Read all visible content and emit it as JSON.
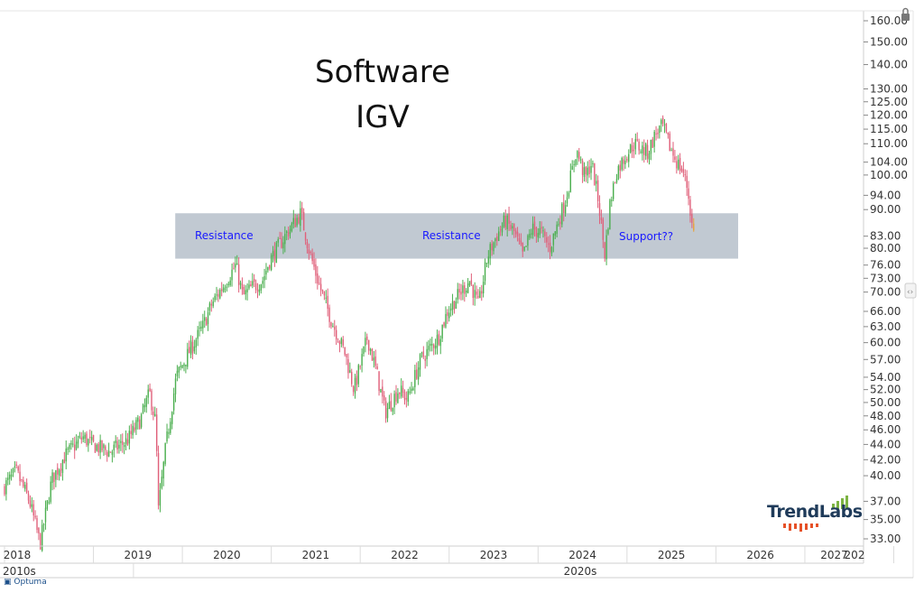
{
  "chart_data": {
    "type": "candlestick",
    "title": "Software",
    "subtitle": "IGV",
    "y_scale": "log",
    "ylim": [
      32,
      165
    ],
    "y_ticks": [
      "160.00",
      "150.00",
      "140.00",
      "130.00",
      "125.00",
      "120.00",
      "115.00",
      "110.00",
      "104.00",
      "100.00",
      "94.00",
      "90.00",
      "83.00",
      "80.00",
      "76.00",
      "73.00",
      "70.00",
      "66.00",
      "63.00",
      "60.00",
      "57.00",
      "54.00",
      "52.00",
      "50.00",
      "48.00",
      "46.00",
      "44.00",
      "42.00",
      "40.00",
      "37.00",
      "35.00",
      "33.00"
    ],
    "x_ticks": [
      "2018",
      "2019",
      "2020",
      "2021",
      "2022",
      "2023",
      "2024",
      "2025",
      "2026",
      "2027",
      "202"
    ],
    "x_eras": [
      "2010s",
      "2020s"
    ],
    "xlim": [
      2018.0,
      2028.0
    ],
    "price_path": [
      {
        "date": 2018.0,
        "price": 38.5
      },
      {
        "date": 2018.15,
        "price": 40.5
      },
      {
        "date": 2018.3,
        "price": 37.0
      },
      {
        "date": 2018.42,
        "price": 32.5
      },
      {
        "date": 2018.55,
        "price": 39.5
      },
      {
        "date": 2018.7,
        "price": 42.5
      },
      {
        "date": 2018.9,
        "price": 45.0
      },
      {
        "date": 2019.0,
        "price": 44.0
      },
      {
        "date": 2019.2,
        "price": 43.0
      },
      {
        "date": 2019.4,
        "price": 44.5
      },
      {
        "date": 2019.55,
        "price": 47.5
      },
      {
        "date": 2019.65,
        "price": 51.5
      },
      {
        "date": 2019.72,
        "price": 47.0
      },
      {
        "date": 2019.75,
        "price": 36.0
      },
      {
        "date": 2019.83,
        "price": 43.5
      },
      {
        "date": 2019.95,
        "price": 54.0
      },
      {
        "date": 2020.1,
        "price": 58.5
      },
      {
        "date": 2020.25,
        "price": 63.0
      },
      {
        "date": 2020.35,
        "price": 67.5
      },
      {
        "date": 2020.5,
        "price": 72.0
      },
      {
        "date": 2020.62,
        "price": 76.0
      },
      {
        "date": 2020.7,
        "price": 69.0
      },
      {
        "date": 2020.8,
        "price": 71.0
      },
      {
        "date": 2020.92,
        "price": 72.5
      },
      {
        "date": 2021.0,
        "price": 77.0
      },
      {
        "date": 2021.2,
        "price": 84.0
      },
      {
        "date": 2021.35,
        "price": 89.0
      },
      {
        "date": 2021.45,
        "price": 79.0
      },
      {
        "date": 2021.55,
        "price": 72.0
      },
      {
        "date": 2021.7,
        "price": 64.0
      },
      {
        "date": 2021.85,
        "price": 58.0
      },
      {
        "date": 2021.95,
        "price": 52.0
      },
      {
        "date": 2022.1,
        "price": 61.0
      },
      {
        "date": 2022.2,
        "price": 55.0
      },
      {
        "date": 2022.3,
        "price": 48.5
      },
      {
        "date": 2022.45,
        "price": 52.0
      },
      {
        "date": 2022.55,
        "price": 50.5
      },
      {
        "date": 2022.7,
        "price": 57.0
      },
      {
        "date": 2022.9,
        "price": 61.0
      },
      {
        "date": 2023.0,
        "price": 66.0
      },
      {
        "date": 2023.15,
        "price": 70.0
      },
      {
        "date": 2023.25,
        "price": 72.5
      },
      {
        "date": 2023.35,
        "price": 67.0
      },
      {
        "date": 2023.45,
        "price": 78.0
      },
      {
        "date": 2023.55,
        "price": 83.0
      },
      {
        "date": 2023.65,
        "price": 87.0
      },
      {
        "date": 2023.75,
        "price": 84.0
      },
      {
        "date": 2023.85,
        "price": 78.0
      },
      {
        "date": 2023.95,
        "price": 85.0
      },
      {
        "date": 2024.05,
        "price": 84.0
      },
      {
        "date": 2024.15,
        "price": 80.0
      },
      {
        "date": 2024.25,
        "price": 87.0
      },
      {
        "date": 2024.32,
        "price": 92.0
      },
      {
        "date": 2024.4,
        "price": 101.0
      },
      {
        "date": 2024.45,
        "price": 108.0
      },
      {
        "date": 2024.55,
        "price": 99.0
      },
      {
        "date": 2024.62,
        "price": 104.0
      },
      {
        "date": 2024.7,
        "price": 92.0
      },
      {
        "date": 2024.77,
        "price": 78.5
      },
      {
        "date": 2024.83,
        "price": 92.0
      },
      {
        "date": 2024.9,
        "price": 101.0
      },
      {
        "date": 2025.0,
        "price": 106.0
      },
      {
        "date": 2025.1,
        "price": 110.0
      },
      {
        "date": 2025.25,
        "price": 107.0
      },
      {
        "date": 2025.35,
        "price": 114.0
      },
      {
        "date": 2025.42,
        "price": 116.0
      },
      {
        "date": 2025.5,
        "price": 109.0
      },
      {
        "date": 2025.58,
        "price": 104.0
      },
      {
        "date": 2025.65,
        "price": 101.0
      },
      {
        "date": 2025.7,
        "price": 96.0
      },
      {
        "date": 2025.74,
        "price": 88.0
      },
      {
        "date": 2025.76,
        "price": 84.0
      }
    ],
    "resistance_zone": {
      "low": 77.5,
      "high": 89.0,
      "x_start": 2019.92,
      "x_end": 2026.25
    },
    "annotations": [
      "Resistance",
      "Resistance",
      "Support??"
    ],
    "colors": {
      "up": "#4caf50",
      "down": "#e0607a",
      "last": "#e8a33d",
      "zone": "#a7b2bf"
    },
    "logo": "TrendLabs",
    "vendor_mark": "Optuma"
  }
}
